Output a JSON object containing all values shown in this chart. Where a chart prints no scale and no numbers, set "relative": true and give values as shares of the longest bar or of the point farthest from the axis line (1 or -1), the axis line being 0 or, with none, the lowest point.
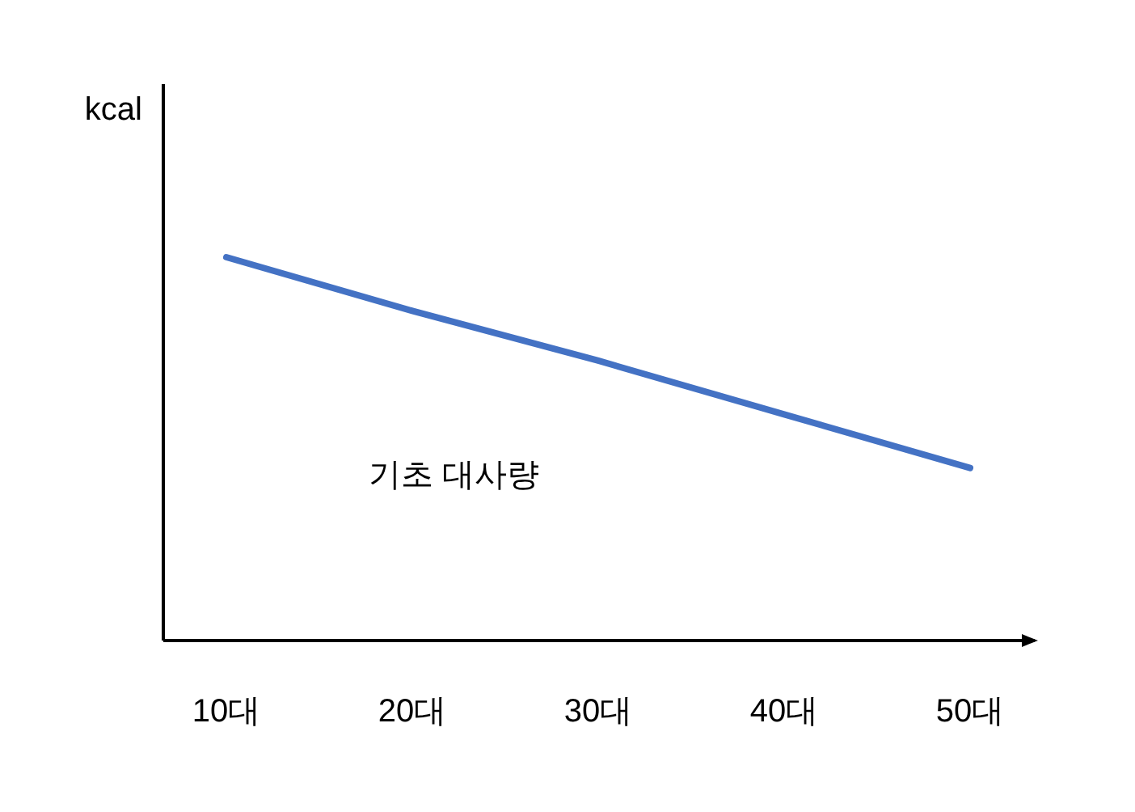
{
  "chart_data": {
    "type": "line",
    "relative": true,
    "ylabel": "kcal",
    "categories": [
      "10대",
      "20대",
      "30대",
      "40대",
      "50대"
    ],
    "series": [
      {
        "color": "#4472c4",
        "values": [
          1,
          0.86,
          0.73,
          0.59,
          0.45
        ]
      }
    ],
    "annotations": [
      "기초 대사량"
    ],
    "marker": "none"
  }
}
